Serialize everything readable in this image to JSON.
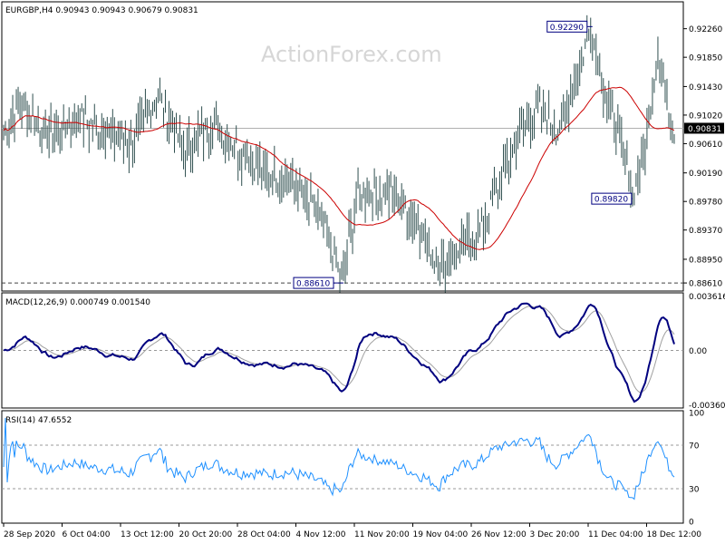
{
  "chart_data": [
    {
      "type": "candlestick",
      "title": "EURGBP,H4  0.90943 0.90943 0.90679 0.90831",
      "watermark": "ActionForex.com",
      "ylim": [
        0.8852,
        0.9262
      ],
      "y_ticks": [
        "0.92260",
        "0.91850",
        "0.91430",
        "0.91020",
        "0.90610",
        "0.90190",
        "0.89780",
        "0.89370",
        "0.88950",
        "0.88610"
      ],
      "y_tick_values": [
        0.9226,
        0.9185,
        0.9143,
        0.9102,
        0.9061,
        0.9019,
        0.8978,
        0.8937,
        0.8895,
        0.8861
      ],
      "current_price": "0.90831",
      "current_value": 0.90831,
      "support_level": "0.88610",
      "support_value": 0.8861,
      "annotations": [
        {
          "text": "0.92290",
          "value": 0.9229
        },
        {
          "text": "0.89820",
          "value": 0.8982
        },
        {
          "text": "0.88610",
          "value": 0.8861
        }
      ],
      "series": [
        {
          "name": "price",
          "color": "#2f4f4f"
        },
        {
          "name": "moving-average",
          "color": "#cc0000"
        }
      ]
    },
    {
      "type": "line",
      "title": "MACD(12,26,9) 0.000749 0.001540",
      "ylim": [
        -0.0037,
        0.0037
      ],
      "y_ticks": [
        "0.003616",
        "0.00",
        "-0.003609"
      ],
      "y_tick_values": [
        0.003616,
        0.0,
        -0.003609
      ],
      "series": [
        {
          "name": "MACD",
          "color": "#00007f"
        },
        {
          "name": "signal",
          "color": "#a0a0a0"
        }
      ]
    },
    {
      "type": "line",
      "title": "RSI(14) 47.6552",
      "ylim": [
        0,
        100
      ],
      "y_ticks": [
        "100",
        "70",
        "30",
        "0"
      ],
      "y_tick_values": [
        100,
        70,
        30,
        0
      ],
      "levels": [
        70,
        30
      ],
      "series": [
        {
          "name": "RSI",
          "color": "#1e90ff"
        }
      ]
    }
  ],
  "x_axis": {
    "labels": [
      "28 Sep 2020",
      "6 Oct 04:00",
      "13 Oct 12:00",
      "20 Oct 20:00",
      "28 Oct 04:00",
      "4 Nov 12:00",
      "11 Nov 20:00",
      "19 Nov 04:00",
      "26 Nov 12:00",
      "3 Dec 20:00",
      "11 Dec 04:00",
      "18 Dec 12:00"
    ]
  },
  "colors": {
    "price_marker_bg": "#000000",
    "annotation_border": "#000080",
    "annotation_text": "#000080"
  }
}
